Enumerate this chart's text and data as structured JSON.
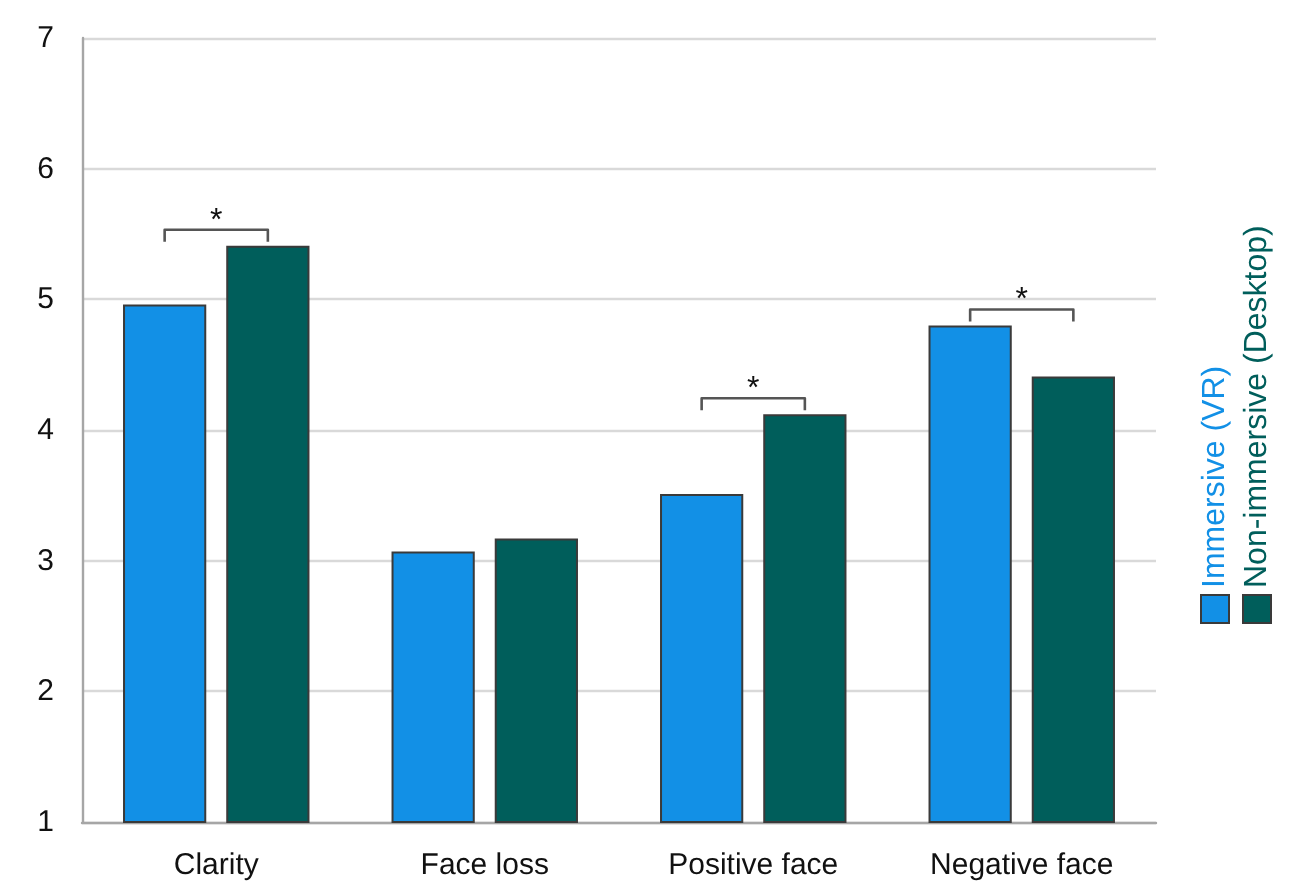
{
  "chart_data": {
    "type": "bar",
    "categories": [
      "Clarity",
      "Face loss",
      "Positive face",
      "Negative face"
    ],
    "series": [
      {
        "name": "Immersive (VR)",
        "color": "#1290e6",
        "values": [
          4.96,
          3.07,
          3.51,
          4.8
        ]
      },
      {
        "name": "Non-immersive (Desktop)",
        "color": "#005e5b",
        "values": [
          5.41,
          3.17,
          4.12,
          4.41
        ]
      }
    ],
    "ylim": [
      1,
      7
    ],
    "yticks": [
      1,
      2,
      3,
      4,
      5,
      6,
      7
    ],
    "grid": "y",
    "legend": "right",
    "annotations": [
      "*",
      "*",
      "*"
    ]
  }
}
